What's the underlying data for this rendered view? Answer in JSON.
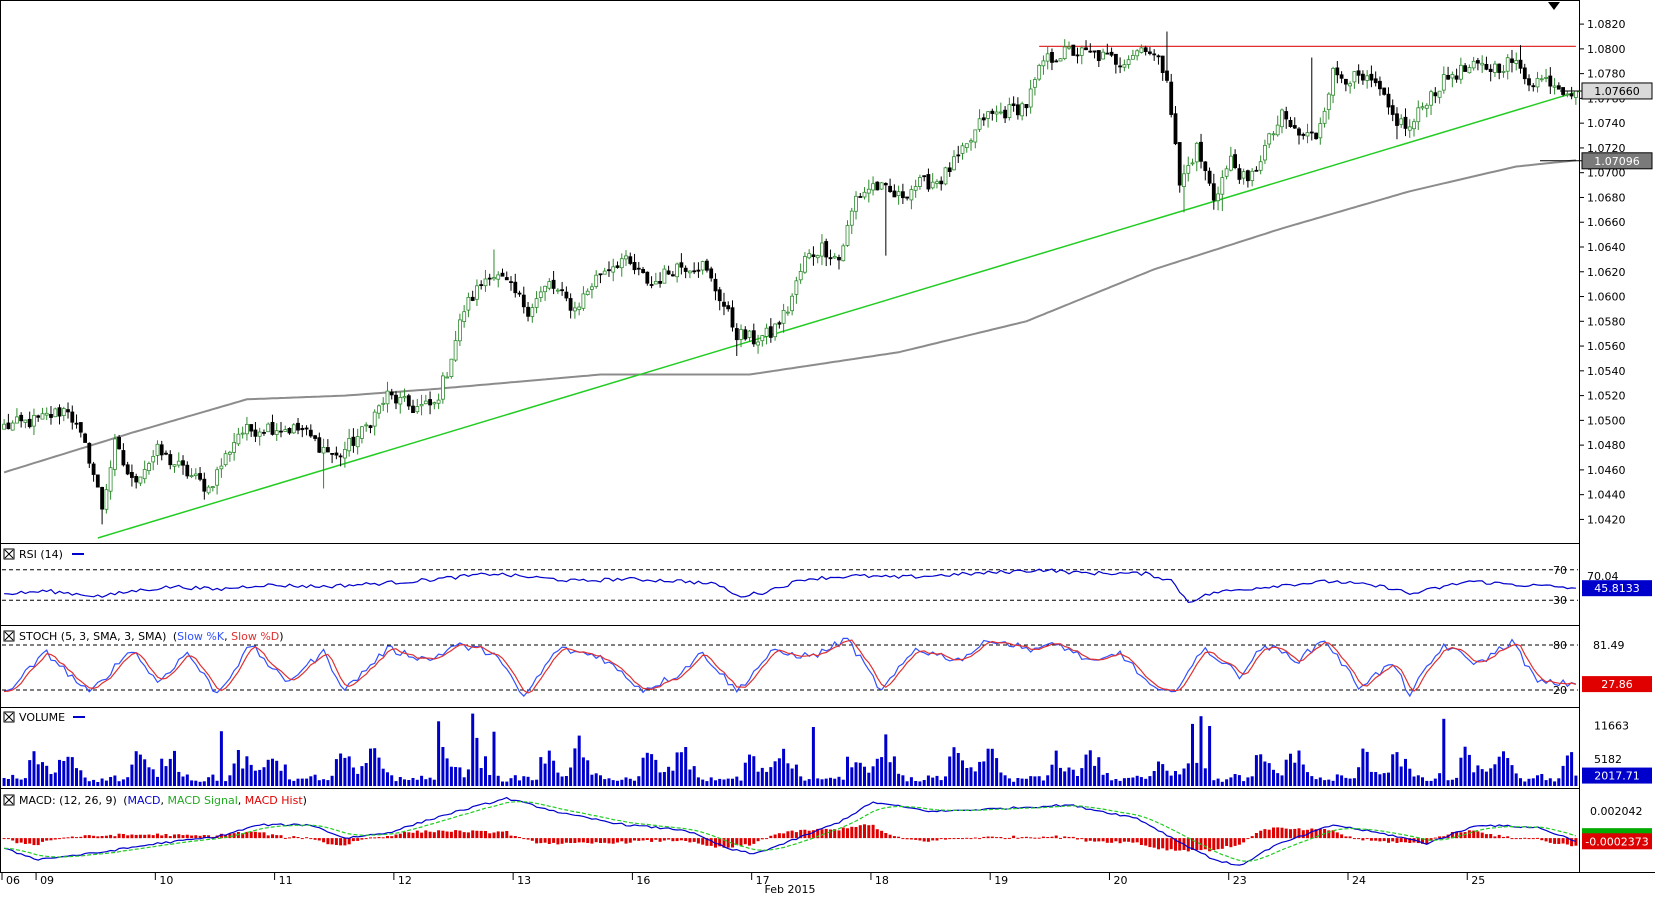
{
  "chart_data": {
    "type": "candlestick-with-indicators",
    "instrument_month": "Feb 2015",
    "price_panel": {
      "ylim": [
        1.0405,
        1.0833
      ],
      "y_ticks": [
        "1.0820",
        "1.0800",
        "1.0780",
        "1.0760",
        "1.0740",
        "1.0720",
        "1.0700",
        "1.0680",
        "1.0660",
        "1.0640",
        "1.0620",
        "1.0600",
        "1.0580",
        "1.0560",
        "1.0540",
        "1.0520",
        "1.0500",
        "1.0480",
        "1.0460",
        "1.0440",
        "1.0420"
      ],
      "y_tick_values": [
        1.082,
        1.08,
        1.078,
        1.076,
        1.074,
        1.072,
        1.07,
        1.068,
        1.066,
        1.064,
        1.062,
        1.06,
        1.058,
        1.056,
        1.054,
        1.052,
        1.05,
        1.048,
        1.046,
        1.044,
        1.042
      ],
      "current_price_label": "1.07660",
      "current_price": 1.0766,
      "moving_average_label": "1.07096",
      "moving_average_value": 1.07096,
      "resistance_level": 1.0802,
      "support_trendline": {
        "start": {
          "bar": 22,
          "price": 1.0405
        },
        "end": {
          "bar": 370,
          "price": 1.0766
        }
      },
      "colors": {
        "candle_up": "#2e8b2e",
        "candle_down": "#000000",
        "resistance": "#e03030",
        "trendline": "#22cc22",
        "moving_average": "#8c8c8c",
        "current_label_bg": "#d9d9d9",
        "ma_label_bg": "#7a7a7a"
      },
      "bar_count": 370,
      "anchor_closes": [
        [
          0,
          1.0495
        ],
        [
          8,
          1.05
        ],
        [
          15,
          1.051
        ],
        [
          20,
          1.047
        ],
        [
          23,
          1.043
        ],
        [
          26,
          1.048
        ],
        [
          30,
          1.045
        ],
        [
          36,
          1.0475
        ],
        [
          42,
          1.046
        ],
        [
          48,
          1.0445
        ],
        [
          55,
          1.049
        ],
        [
          62,
          1.0495
        ],
        [
          70,
          1.0492
        ],
        [
          74,
          1.048
        ],
        [
          78,
          1.047
        ],
        [
          84,
          1.049
        ],
        [
          90,
          1.052
        ],
        [
          96,
          1.051
        ],
        [
          101,
          1.0512
        ],
        [
          104,
          1.054
        ],
        [
          108,
          1.059
        ],
        [
          114,
          1.062
        ],
        [
          118,
          1.061
        ],
        [
          123,
          1.059
        ],
        [
          128,
          1.061
        ],
        [
          134,
          1.059
        ],
        [
          140,
          1.062
        ],
        [
          145,
          1.063
        ],
        [
          152,
          1.061
        ],
        [
          158,
          1.0625
        ],
        [
          164,
          1.0625
        ],
        [
          168,
          1.06
        ],
        [
          172,
          1.057
        ],
        [
          176,
          1.0565
        ],
        [
          180,
          1.057
        ],
        [
          184,
          1.059
        ],
        [
          188,
          1.063
        ],
        [
          192,
          1.064
        ],
        [
          196,
          1.063
        ],
        [
          200,
          1.068
        ],
        [
          204,
          1.069
        ],
        [
          210,
          1.068
        ],
        [
          214,
          1.069
        ],
        [
          220,
          1.0695
        ],
        [
          226,
          1.072
        ],
        [
          230,
          1.0745
        ],
        [
          236,
          1.075
        ],
        [
          240,
          1.0755
        ],
        [
          244,
          1.079
        ],
        [
          250,
          1.0798
        ],
        [
          256,
          1.0795
        ],
        [
          262,
          1.079
        ],
        [
          268,
          1.0803
        ],
        [
          273,
          1.078
        ],
        [
          276,
          1.069
        ],
        [
          280,
          1.072
        ],
        [
          284,
          1.068
        ],
        [
          288,
          1.071
        ],
        [
          292,
          1.069
        ],
        [
          296,
          1.072
        ],
        [
          300,
          1.0745
        ],
        [
          304,
          1.073
        ],
        [
          308,
          1.073
        ],
        [
          312,
          1.078
        ],
        [
          318,
          1.0775
        ],
        [
          322,
          1.077
        ],
        [
          326,
          1.0745
        ],
        [
          330,
          1.0735
        ],
        [
          334,
          1.076
        ],
        [
          340,
          1.078
        ],
        [
          346,
          1.0785
        ],
        [
          350,
          1.0785
        ],
        [
          354,
          1.079
        ],
        [
          358,
          1.0775
        ],
        [
          363,
          1.0775
        ],
        [
          366,
          1.0768
        ],
        [
          369,
          1.0766
        ]
      ],
      "extreme_points": [
        [
          23,
          1.0416
        ],
        [
          31,
          1.0445
        ],
        [
          75,
          1.0445
        ],
        [
          115,
          1.0638
        ],
        [
          172,
          1.0552
        ],
        [
          207,
          1.0633
        ],
        [
          273,
          1.0814
        ],
        [
          277,
          1.0668
        ],
        [
          286,
          1.0669
        ],
        [
          307,
          1.0793
        ],
        [
          327,
          1.0727
        ],
        [
          356,
          1.0803
        ]
      ],
      "ma_anchors": [
        [
          0,
          1.0458
        ],
        [
          30,
          1.049
        ],
        [
          57,
          1.0517
        ],
        [
          80,
          1.052
        ],
        [
          100,
          1.0525
        ],
        [
          140,
          1.0537
        ],
        [
          175,
          1.0537
        ],
        [
          210,
          1.0555
        ],
        [
          240,
          1.058
        ],
        [
          270,
          1.0622
        ],
        [
          300,
          1.0655
        ],
        [
          330,
          1.0685
        ],
        [
          355,
          1.0705
        ],
        [
          369,
          1.071
        ]
      ]
    },
    "rsi_panel": {
      "title": "RSI (14)",
      "ylim": [
        0,
        100
      ],
      "levels": [
        70,
        30
      ],
      "level_labels": [
        "70",
        "30"
      ],
      "y_tick_label": "70.04",
      "current_value_label": "45.8133",
      "current_value": 45.8133,
      "color": "#0000cc",
      "anchors": [
        [
          0,
          38
        ],
        [
          10,
          42
        ],
        [
          23,
          35
        ],
        [
          30,
          42
        ],
        [
          40,
          48
        ],
        [
          50,
          44
        ],
        [
          60,
          50
        ],
        [
          75,
          48
        ],
        [
          88,
          52
        ],
        [
          96,
          55
        ],
        [
          115,
          65
        ],
        [
          120,
          62
        ],
        [
          135,
          55
        ],
        [
          145,
          58
        ],
        [
          160,
          55
        ],
        [
          168,
          50
        ],
        [
          172,
          35
        ],
        [
          178,
          40
        ],
        [
          188,
          58
        ],
        [
          200,
          62
        ],
        [
          210,
          60
        ],
        [
          228,
          65
        ],
        [
          244,
          70
        ],
        [
          252,
          66
        ],
        [
          268,
          65
        ],
        [
          274,
          56
        ],
        [
          278,
          28
        ],
        [
          284,
          40
        ],
        [
          292,
          45
        ],
        [
          300,
          50
        ],
        [
          312,
          55
        ],
        [
          326,
          46
        ],
        [
          330,
          38
        ],
        [
          344,
          55
        ],
        [
          356,
          50
        ],
        [
          364,
          48
        ],
        [
          369,
          45.8
        ]
      ]
    },
    "stoch_panel": {
      "title": "STOCH (5, 3, SMA, 3, SMA)",
      "series_names": [
        "Slow %K",
        "Slow %D"
      ],
      "ylim": [
        0,
        100
      ],
      "levels": [
        80,
        20
      ],
      "level_labels": [
        "80",
        "20"
      ],
      "y_tick_label": "81.49",
      "current_value_label": "27.86",
      "current_value": 27.86,
      "k_color": "#3050ff",
      "d_color": "#e03030",
      "anchors": [
        [
          0,
          15
        ],
        [
          10,
          70
        ],
        [
          20,
          15
        ],
        [
          30,
          75
        ],
        [
          36,
          30
        ],
        [
          43,
          70
        ],
        [
          50,
          15
        ],
        [
          58,
          80
        ],
        [
          66,
          30
        ],
        [
          75,
          70
        ],
        [
          80,
          20
        ],
        [
          90,
          75
        ],
        [
          100,
          60
        ],
        [
          106,
          80
        ],
        [
          115,
          70
        ],
        [
          122,
          10
        ],
        [
          130,
          75
        ],
        [
          140,
          65
        ],
        [
          150,
          20
        ],
        [
          158,
          40
        ],
        [
          164,
          70
        ],
        [
          172,
          18
        ],
        [
          180,
          70
        ],
        [
          190,
          65
        ],
        [
          198,
          88
        ],
        [
          206,
          18
        ],
        [
          214,
          75
        ],
        [
          224,
          60
        ],
        [
          232,
          88
        ],
        [
          240,
          75
        ],
        [
          248,
          80
        ],
        [
          256,
          55
        ],
        [
          262,
          70
        ],
        [
          270,
          20
        ],
        [
          274,
          15
        ],
        [
          282,
          75
        ],
        [
          290,
          40
        ],
        [
          296,
          80
        ],
        [
          304,
          60
        ],
        [
          310,
          88
        ],
        [
          318,
          25
        ],
        [
          326,
          55
        ],
        [
          330,
          15
        ],
        [
          338,
          80
        ],
        [
          346,
          55
        ],
        [
          354,
          85
        ],
        [
          360,
          30
        ],
        [
          369,
          28
        ]
      ]
    },
    "volume_panel": {
      "title": "VOLUME",
      "ylim": [
        0,
        14500
      ],
      "y_tick_labels": [
        "11663",
        "5182"
      ],
      "y_tick_values": [
        11663,
        5182
      ],
      "current_value_label": "2017.71",
      "current_value": 2017.71,
      "color": "#0000cc",
      "bars_per_day": 24,
      "day_volume_profile": [
        1500,
        1800,
        1600,
        1400,
        1300,
        1500,
        4500,
        5500,
        5000,
        4200,
        3000,
        2600,
        2800,
        3800,
        5600,
        7200,
        5500,
        4200,
        3000,
        1900,
        1500,
        1300,
        1200,
        1100
      ],
      "spikes": [
        [
          102,
          12500
        ],
        [
          110,
          14000
        ],
        [
          281,
          13500
        ],
        [
          338,
          13000
        ],
        [
          279,
          12000
        ],
        [
          283,
          11600
        ],
        [
          190,
          11400
        ],
        [
          51,
          10600
        ],
        [
          115,
          10500
        ]
      ]
    },
    "macd_panel": {
      "title": "MACD: (12, 26, 9)",
      "series_names": [
        "MACD",
        "MACD Signal",
        "MACD Hist"
      ],
      "ylim": [
        -0.0024,
        0.0034
      ],
      "y_tick_label": "0.002042",
      "current_value_label": "-0.0002373",
      "current_value": -0.0002373,
      "macd_color": "#0000cc",
      "signal_color": "#22cc22",
      "hist_color": "#dd0000",
      "anchors": [
        [
          0,
          -0.0008
        ],
        [
          8,
          -0.0016
        ],
        [
          22,
          -0.0011
        ],
        [
          36,
          -0.0004
        ],
        [
          50,
          0.0001
        ],
        [
          60,
          0.001
        ],
        [
          72,
          0.001
        ],
        [
          80,
          0.0
        ],
        [
          90,
          0.0004
        ],
        [
          104,
          0.0018
        ],
        [
          118,
          0.003
        ],
        [
          132,
          0.0018
        ],
        [
          146,
          0.001
        ],
        [
          160,
          0.0006
        ],
        [
          170,
          -0.0008
        ],
        [
          176,
          -0.0012
        ],
        [
          184,
          -0.0003
        ],
        [
          196,
          0.0012
        ],
        [
          204,
          0.0027
        ],
        [
          218,
          0.002
        ],
        [
          232,
          0.0022
        ],
        [
          250,
          0.0025
        ],
        [
          266,
          0.0015
        ],
        [
          276,
          -0.0003
        ],
        [
          284,
          -0.0016
        ],
        [
          290,
          -0.0021
        ],
        [
          298,
          -0.0006
        ],
        [
          312,
          0.001
        ],
        [
          326,
          0.0002
        ],
        [
          334,
          -0.0004
        ],
        [
          346,
          0.001
        ],
        [
          360,
          0.0008
        ],
        [
          369,
          -0.0002
        ]
      ]
    },
    "x_axis": {
      "day_labels": [
        "06",
        "09",
        "10",
        "11",
        "12",
        "13",
        "16",
        "17",
        "18",
        "19",
        "20",
        "23",
        "24",
        "25"
      ],
      "day_start_bars": [
        0,
        8,
        36,
        64,
        92,
        120,
        148,
        176,
        204,
        232,
        260,
        288,
        316,
        344
      ],
      "month_label": "Feb 2015"
    },
    "grid": false,
    "legend": "inline-top-left"
  }
}
